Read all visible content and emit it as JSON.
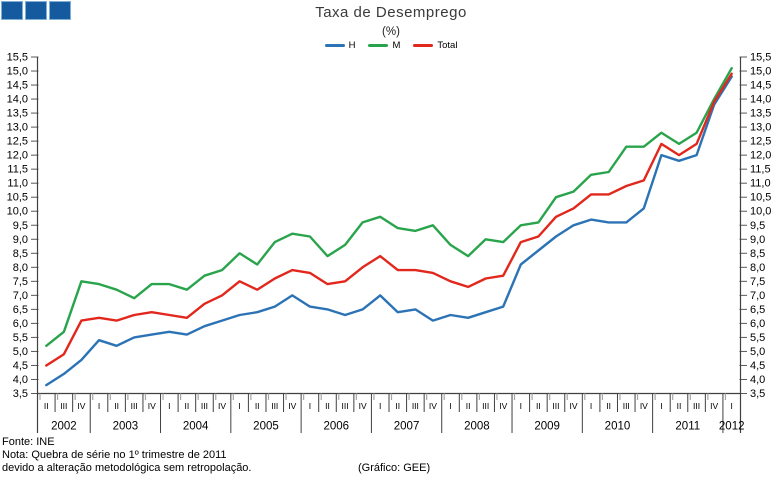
{
  "logo": {
    "color": "#155a9e",
    "square_count": 3
  },
  "title": "Taxa de Desemprego",
  "subtitle": "(%)",
  "footer": {
    "source": "Fonte: INE",
    "note_line1": "Nota: Quebra de série no 1º trimestre de 2011",
    "note_line2": "devido a alteração metodológica sem retropolação.",
    "credit": "(Gráfico: GEE)"
  },
  "chart_data": {
    "type": "line",
    "title": "Taxa de Desemprego",
    "ylabel": "(%)",
    "ylim": [
      3.5,
      15.5
    ],
    "ystep": 0.5,
    "grid": false,
    "legend_position": "top-center",
    "decimal_separator": ",",
    "x_axis": {
      "years": [
        {
          "label": "2002",
          "quarters": [
            "II",
            "III",
            "IV"
          ]
        },
        {
          "label": "2003",
          "quarters": [
            "I",
            "II",
            "III",
            "IV"
          ]
        },
        {
          "label": "2004",
          "quarters": [
            "I",
            "II",
            "III",
            "IV"
          ]
        },
        {
          "label": "2005",
          "quarters": [
            "I",
            "II",
            "III",
            "IV"
          ]
        },
        {
          "label": "2006",
          "quarters": [
            "I",
            "II",
            "III",
            "IV"
          ]
        },
        {
          "label": "2007",
          "quarters": [
            "I",
            "II",
            "III",
            "IV"
          ]
        },
        {
          "label": "2008",
          "quarters": [
            "I",
            "II",
            "III",
            "IV"
          ]
        },
        {
          "label": "2009",
          "quarters": [
            "I",
            "II",
            "III",
            "IV"
          ]
        },
        {
          "label": "2010",
          "quarters": [
            "I",
            "II",
            "III",
            "IV"
          ]
        },
        {
          "label": "2011",
          "quarters": [
            "I",
            "II",
            "III",
            "IV"
          ]
        },
        {
          "label": "2012",
          "quarters": [
            "I"
          ]
        }
      ]
    },
    "series": [
      {
        "name": "H",
        "color": "#2c73b5",
        "values": [
          3.8,
          4.2,
          4.7,
          5.4,
          5.2,
          5.5,
          5.6,
          5.7,
          5.6,
          5.9,
          6.1,
          6.3,
          6.4,
          6.6,
          7.0,
          6.6,
          6.5,
          6.3,
          6.5,
          7.0,
          6.4,
          6.5,
          6.1,
          6.3,
          6.2,
          6.4,
          6.6,
          8.1,
          8.6,
          9.1,
          9.5,
          9.7,
          9.6,
          9.6,
          10.1,
          12.0,
          11.8,
          12.0,
          13.8,
          14.8
        ]
      },
      {
        "name": "M",
        "color": "#2aa44c",
        "values": [
          5.2,
          5.7,
          7.5,
          7.4,
          7.2,
          6.9,
          7.4,
          7.4,
          7.2,
          7.7,
          7.9,
          8.5,
          8.1,
          8.9,
          9.2,
          9.1,
          8.4,
          8.8,
          9.6,
          9.8,
          9.4,
          9.3,
          9.5,
          8.8,
          8.4,
          9.0,
          8.9,
          9.5,
          9.6,
          10.5,
          10.7,
          11.3,
          11.4,
          12.3,
          12.3,
          12.8,
          12.4,
          12.8,
          14.0,
          15.1
        ]
      },
      {
        "name": "Total",
        "color": "#e2271c",
        "values": [
          4.5,
          4.9,
          6.1,
          6.2,
          6.1,
          6.3,
          6.4,
          6.3,
          6.2,
          6.7,
          7.0,
          7.5,
          7.2,
          7.6,
          7.9,
          7.8,
          7.4,
          7.5,
          8.0,
          8.4,
          7.9,
          7.9,
          7.8,
          7.5,
          7.3,
          7.6,
          7.7,
          8.9,
          9.1,
          9.8,
          10.1,
          10.6,
          10.6,
          10.9,
          11.1,
          12.4,
          12.0,
          12.4,
          13.9,
          14.9
        ]
      }
    ]
  }
}
